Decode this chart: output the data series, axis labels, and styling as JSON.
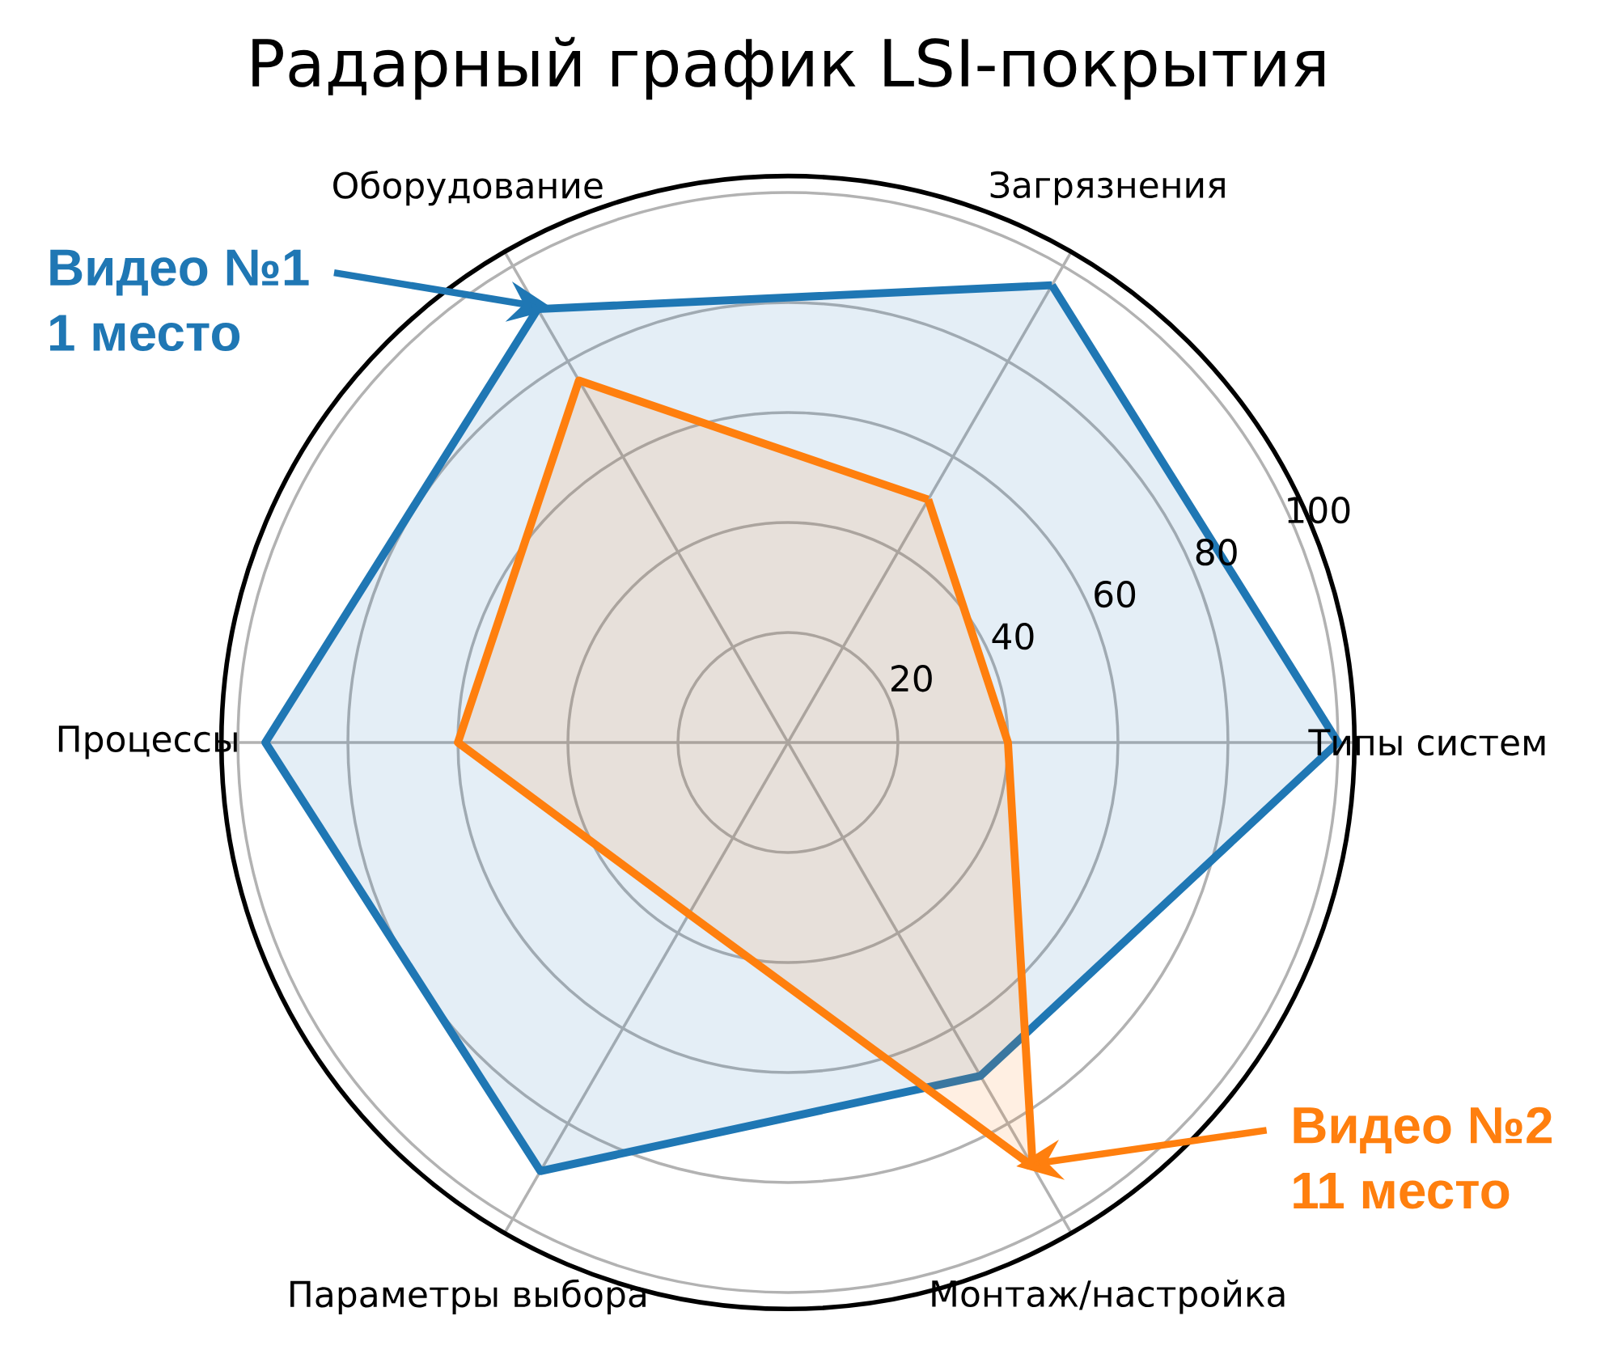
{
  "chart_data": {
    "type": "radar",
    "title": "Радарный график LSI-покрытия",
    "categories": [
      "Загрязнения",
      "Типы систем",
      "Монтаж/настройка",
      "Параметры выбора",
      "Процессы",
      "Оборудование"
    ],
    "series": [
      {
        "name": "Видео №1",
        "color": "#1f77b4",
        "values": [
          96,
          100,
          70,
          90,
          95,
          91
        ]
      },
      {
        "name": "Видео №2",
        "color": "#ff7f0e",
        "values": [
          51,
          40,
          89,
          36,
          60,
          76
        ]
      }
    ],
    "ylim": [
      0,
      103
    ],
    "yticks": [
      20,
      40,
      60,
      80,
      100
    ],
    "grid": true,
    "annotations": [
      {
        "text": "1 место",
        "x": "Оборудование"
      },
      {
        "text": "11 место",
        "x": "Монтаж/настройка"
      }
    ]
  }
}
